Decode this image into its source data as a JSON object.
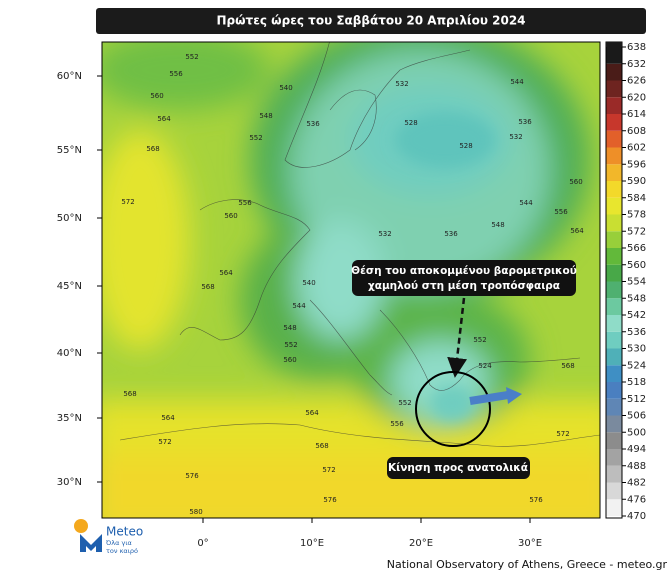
{
  "header": {
    "title": "Πρώτες ώρες του Σαββάτου 20 Απριλίου 2024"
  },
  "map": {
    "latitude_labels": [
      "60°N",
      "55°N",
      "50°N",
      "45°N",
      "40°N",
      "35°N",
      "30°N"
    ],
    "longitude_labels": [
      "0°",
      "10°E",
      "20°E",
      "30°E"
    ],
    "contour_labels": [
      "552",
      "556",
      "560",
      "564",
      "568",
      "572",
      "540",
      "548",
      "552",
      "532",
      "528",
      "528",
      "536",
      "544",
      "532",
      "536",
      "560",
      "544",
      "556",
      "564",
      "532",
      "536",
      "548",
      "556",
      "560",
      "564",
      "568",
      "540",
      "544",
      "548",
      "552",
      "560",
      "564",
      "568",
      "572",
      "576",
      "580",
      "576",
      "572",
      "568",
      "524",
      "552",
      "556",
      "552",
      "564",
      "568",
      "572",
      "576"
    ],
    "annotations": {
      "low_position": [
        "Θέση του αποκομμένου βαρομετρικού",
        "χαμηλού στη μέση τροπόσφαιρα"
      ],
      "movement": "Κίνηση προς ανατολικά"
    }
  },
  "colorbar": {
    "ticks": [
      470,
      476,
      482,
      488,
      494,
      500,
      506,
      512,
      518,
      524,
      530,
      536,
      542,
      548,
      554,
      560,
      566,
      572,
      578,
      584,
      590,
      596,
      602,
      608,
      614,
      620,
      626,
      632,
      638
    ],
    "colors": [
      "#f2f2f2",
      "#d8d8d8",
      "#bdbdbd",
      "#a3a3a3",
      "#8c8c8c",
      "#7a8a9e",
      "#5f86b5",
      "#4a7fc0",
      "#3f8fc4",
      "#4fb0b8",
      "#6fcdc0",
      "#8fdcc8",
      "#6cc9a0",
      "#4fb070",
      "#48a848",
      "#62b93a",
      "#98cf3a",
      "#c9df32",
      "#e8e62e",
      "#f3d92a",
      "#f2b72a",
      "#ee8f28",
      "#e2602a",
      "#c7372c",
      "#9a2a28",
      "#6e2420",
      "#4a1c18",
      "#1a1a1a"
    ]
  },
  "footer": {
    "credit": "National Observatory of Athens, Greece - meteo.gr"
  },
  "logo": {
    "name": "Meteo",
    "tagline": [
      "Όλα για",
      "τον καιρό"
    ]
  }
}
